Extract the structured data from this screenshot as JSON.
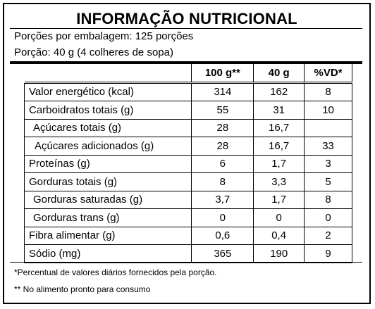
{
  "title": "INFORMAÇÃO NUTRICIONAL",
  "servings_line": "Porções por embalagem: 125 porções",
  "portion_line": "Porção: 40 g (4 colheres de sopa)",
  "columns": [
    "",
    "100 g**",
    "40 g",
    "%VD*"
  ],
  "rows": [
    {
      "label": "Valor energético (kcal)",
      "c1": "314",
      "c2": "162",
      "c3": "8"
    },
    {
      "label": "Carboidratos totais (g)",
      "c1": "55",
      "c2": "31",
      "c3": "10"
    },
    {
      "label": "Açúcares totais (g)",
      "c1": "28",
      "c2": "16,7",
      "c3": ""
    },
    {
      "label": "Açúcares adicionados (g)",
      "c1": "28",
      "c2": "16,7",
      "c3": "33"
    },
    {
      "label": "Proteínas (g)",
      "c1": "6",
      "c2": "1,7",
      "c3": "3"
    },
    {
      "label": "Gorduras totais (g)",
      "c1": "8",
      "c2": "3,3",
      "c3": "5"
    },
    {
      "label": "Gorduras saturadas (g)",
      "c1": "3,7",
      "c2": "1,7",
      "c3": "8"
    },
    {
      "label": "Gorduras trans (g)",
      "c1": "0",
      "c2": "0",
      "c3": "0"
    },
    {
      "label": "Fibra alimentar (g)",
      "c1": "0,6",
      "c2": "0,4",
      "c3": "2"
    },
    {
      "label": "Sódio (mg)",
      "c1": "365",
      "c2": "190",
      "c3": "9"
    }
  ],
  "footnote_1": "*Percentual de valores diários fornecidos pela porção.",
  "footnote_2": "** No alimento pronto para consumo"
}
